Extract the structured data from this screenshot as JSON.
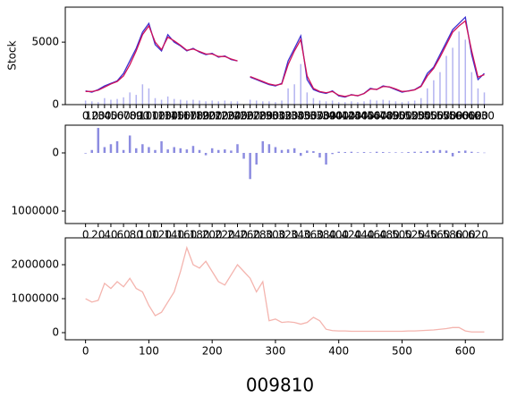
{
  "suptitle": "009810",
  "chart_data": [
    {
      "type": "line",
      "ylabel": "Stock",
      "x": [
        0,
        10,
        20,
        30,
        40,
        50,
        60,
        70,
        80,
        90,
        100,
        110,
        120,
        130,
        140,
        150,
        160,
        170,
        180,
        190,
        200,
        210,
        220,
        230,
        240,
        250,
        260,
        270,
        280,
        290,
        300,
        310,
        320,
        330,
        340,
        350,
        360,
        370,
        380,
        390,
        400,
        410,
        420,
        430,
        440,
        450,
        460,
        470,
        480,
        490,
        500,
        510,
        520,
        530,
        540,
        550,
        560,
        570,
        580,
        590,
        600,
        610,
        620,
        630
      ],
      "series": [
        {
          "type": "bar",
          "axis": "y2",
          "color": "#b4b4f0",
          "values": [
            500000,
            400000,
            300000,
            800000,
            600000,
            700000,
            900000,
            1500000,
            1200000,
            2500000,
            2000000,
            800000,
            600000,
            1000000,
            700000,
            600000,
            500000,
            600000,
            500000,
            400000,
            500000,
            400000,
            500000,
            400000,
            400000,
            null,
            600000,
            500000,
            400000,
            400000,
            300000,
            500000,
            2000000,
            2500000,
            5000000,
            1500000,
            800000,
            500000,
            400000,
            500000,
            300000,
            300000,
            400000,
            300000,
            400000,
            600000,
            500000,
            600000,
            500000,
            400000,
            300000,
            400000,
            500000,
            800000,
            2000000,
            3000000,
            4000000,
            6000000,
            7000000,
            9000000,
            8000000,
            4000000,
            2000000,
            1500000
          ]
        },
        {
          "type": "line",
          "color": "#3a2fd0",
          "values": [
            1100,
            1000,
            1200,
            1500,
            1700,
            1900,
            2500,
            3500,
            4500,
            5800,
            6500,
            4800,
            4300,
            5600,
            5000,
            4700,
            4300,
            4500,
            4200,
            4000,
            4100,
            3800,
            3900,
            3600,
            3500,
            null,
            2200,
            2000,
            1800,
            1600,
            1500,
            1700,
            3500,
            4500,
            5500,
            2000,
            1200,
            1000,
            900,
            1100,
            700,
            600,
            800,
            700,
            900,
            1300,
            1200,
            1500,
            1400,
            1200,
            1000,
            1100,
            1200,
            1500,
            2500,
            3000,
            4000,
            5000,
            6000,
            6500,
            7000,
            4000,
            2000,
            2500
          ]
        },
        {
          "type": "line",
          "color": "#d0105a",
          "values": [
            1050,
            1050,
            1150,
            1400,
            1650,
            1850,
            2300,
            3200,
            4300,
            5600,
            6300,
            5000,
            4400,
            5400,
            5100,
            4750,
            4350,
            4450,
            4250,
            4050,
            4050,
            3850,
            3850,
            3650,
            3500,
            null,
            2250,
            2050,
            1850,
            1650,
            1550,
            1650,
            3200,
            4300,
            5200,
            2300,
            1300,
            1050,
            950,
            1050,
            750,
            650,
            780,
            720,
            880,
            1250,
            1220,
            1450,
            1420,
            1250,
            1050,
            1080,
            1180,
            1450,
            2300,
            2900,
            3800,
            4800,
            5800,
            6300,
            6700,
            4300,
            2200,
            2400
          ]
        }
      ],
      "xlim": [
        -32,
        659
      ],
      "ylim": [
        0,
        7800
      ],
      "y2lim": [
        0,
        12000000
      ],
      "xticks": [
        0,
        10,
        20,
        30,
        40,
        50,
        60,
        70,
        80,
        90,
        100,
        110,
        120,
        130,
        140,
        150,
        160,
        170,
        180,
        190,
        200,
        210,
        220,
        230,
        240,
        250,
        260,
        270,
        280,
        290,
        300,
        310,
        320,
        330,
        340,
        350,
        360,
        370,
        380,
        390,
        400,
        410,
        420,
        430,
        440,
        450,
        460,
        470,
        480,
        490,
        500,
        510,
        520,
        530,
        540,
        550,
        560,
        570,
        580,
        590,
        600,
        610,
        620,
        630
      ],
      "yticks": [
        0,
        5000
      ]
    },
    {
      "type": "bar",
      "color": "#8c8ce0",
      "x": [
        0,
        10,
        20,
        30,
        40,
        50,
        60,
        70,
        80,
        90,
        100,
        110,
        120,
        130,
        140,
        150,
        160,
        170,
        180,
        190,
        200,
        210,
        220,
        230,
        240,
        250,
        260,
        270,
        280,
        290,
        300,
        310,
        320,
        330,
        340,
        350,
        360,
        370,
        380,
        390,
        400,
        410,
        420,
        430,
        440,
        450,
        460,
        470,
        480,
        490,
        500,
        510,
        520,
        530,
        540,
        550,
        560,
        570,
        580,
        590,
        600,
        610,
        620,
        630
      ],
      "values": [
        10000,
        -50000,
        -430000,
        -100000,
        -150000,
        -200000,
        -50000,
        -300000,
        -80000,
        -150000,
        -100000,
        -50000,
        -200000,
        -60000,
        -100000,
        -80000,
        -60000,
        -120000,
        -50000,
        40000,
        -80000,
        -50000,
        -60000,
        -40000,
        -150000,
        100000,
        450000,
        200000,
        -200000,
        -150000,
        -100000,
        -50000,
        -60000,
        -80000,
        50000,
        -40000,
        -30000,
        80000,
        200000,
        20000,
        -20000,
        -15000,
        -20000,
        -10000,
        -15000,
        -10000,
        -20000,
        -15000,
        -10000,
        -10000,
        -10000,
        -15000,
        -20000,
        -20000,
        -30000,
        -40000,
        -50000,
        -40000,
        60000,
        -30000,
        -40000,
        -20000,
        -10000,
        -5000
      ],
      "xlim": [
        -32,
        659
      ],
      "ylim": [
        1215000,
        -477000
      ],
      "xticks": [
        0,
        20,
        40,
        60,
        80,
        100,
        120,
        140,
        160,
        180,
        200,
        220,
        240,
        260,
        280,
        300,
        320,
        340,
        360,
        380,
        400,
        420,
        440,
        460,
        480,
        500,
        520,
        540,
        560,
        580,
        600,
        620
      ],
      "yticks": [
        0,
        1000000
      ]
    },
    {
      "type": "line",
      "x": [
        0,
        10,
        20,
        30,
        40,
        50,
        60,
        70,
        80,
        90,
        100,
        110,
        120,
        130,
        140,
        150,
        160,
        170,
        180,
        190,
        200,
        210,
        220,
        230,
        240,
        250,
        260,
        270,
        280,
        290,
        300,
        310,
        320,
        330,
        340,
        350,
        360,
        370,
        380,
        390,
        400,
        410,
        420,
        430,
        440,
        450,
        460,
        470,
        480,
        490,
        500,
        510,
        520,
        530,
        540,
        550,
        560,
        570,
        580,
        590,
        600,
        610,
        620,
        630
      ],
      "series": [
        {
          "type": "line",
          "color": "#f4b4ae",
          "values": [
            1000000,
            900000,
            950000,
            1450000,
            1300000,
            1500000,
            1350000,
            1600000,
            1300000,
            1200000,
            800000,
            500000,
            600000,
            900000,
            1200000,
            1800000,
            2500000,
            2000000,
            1900000,
            2100000,
            1800000,
            1500000,
            1400000,
            1700000,
            2000000,
            1800000,
            1600000,
            1200000,
            1500000,
            350000,
            400000,
            300000,
            320000,
            300000,
            250000,
            300000,
            450000,
            350000,
            100000,
            60000,
            50000,
            50000,
            40000,
            40000,
            40000,
            40000,
            40000,
            40000,
            40000,
            40000,
            40000,
            50000,
            50000,
            60000,
            70000,
            80000,
            100000,
            120000,
            150000,
            150000,
            50000,
            20000,
            20000,
            20000
          ]
        }
      ],
      "xlim": [
        -32,
        659
      ],
      "ylim": [
        -210000,
        2790000
      ],
      "xticks": [
        0,
        100,
        200,
        300,
        400,
        500,
        600
      ],
      "yticks": [
        0,
        1000000,
        2000000
      ]
    }
  ]
}
